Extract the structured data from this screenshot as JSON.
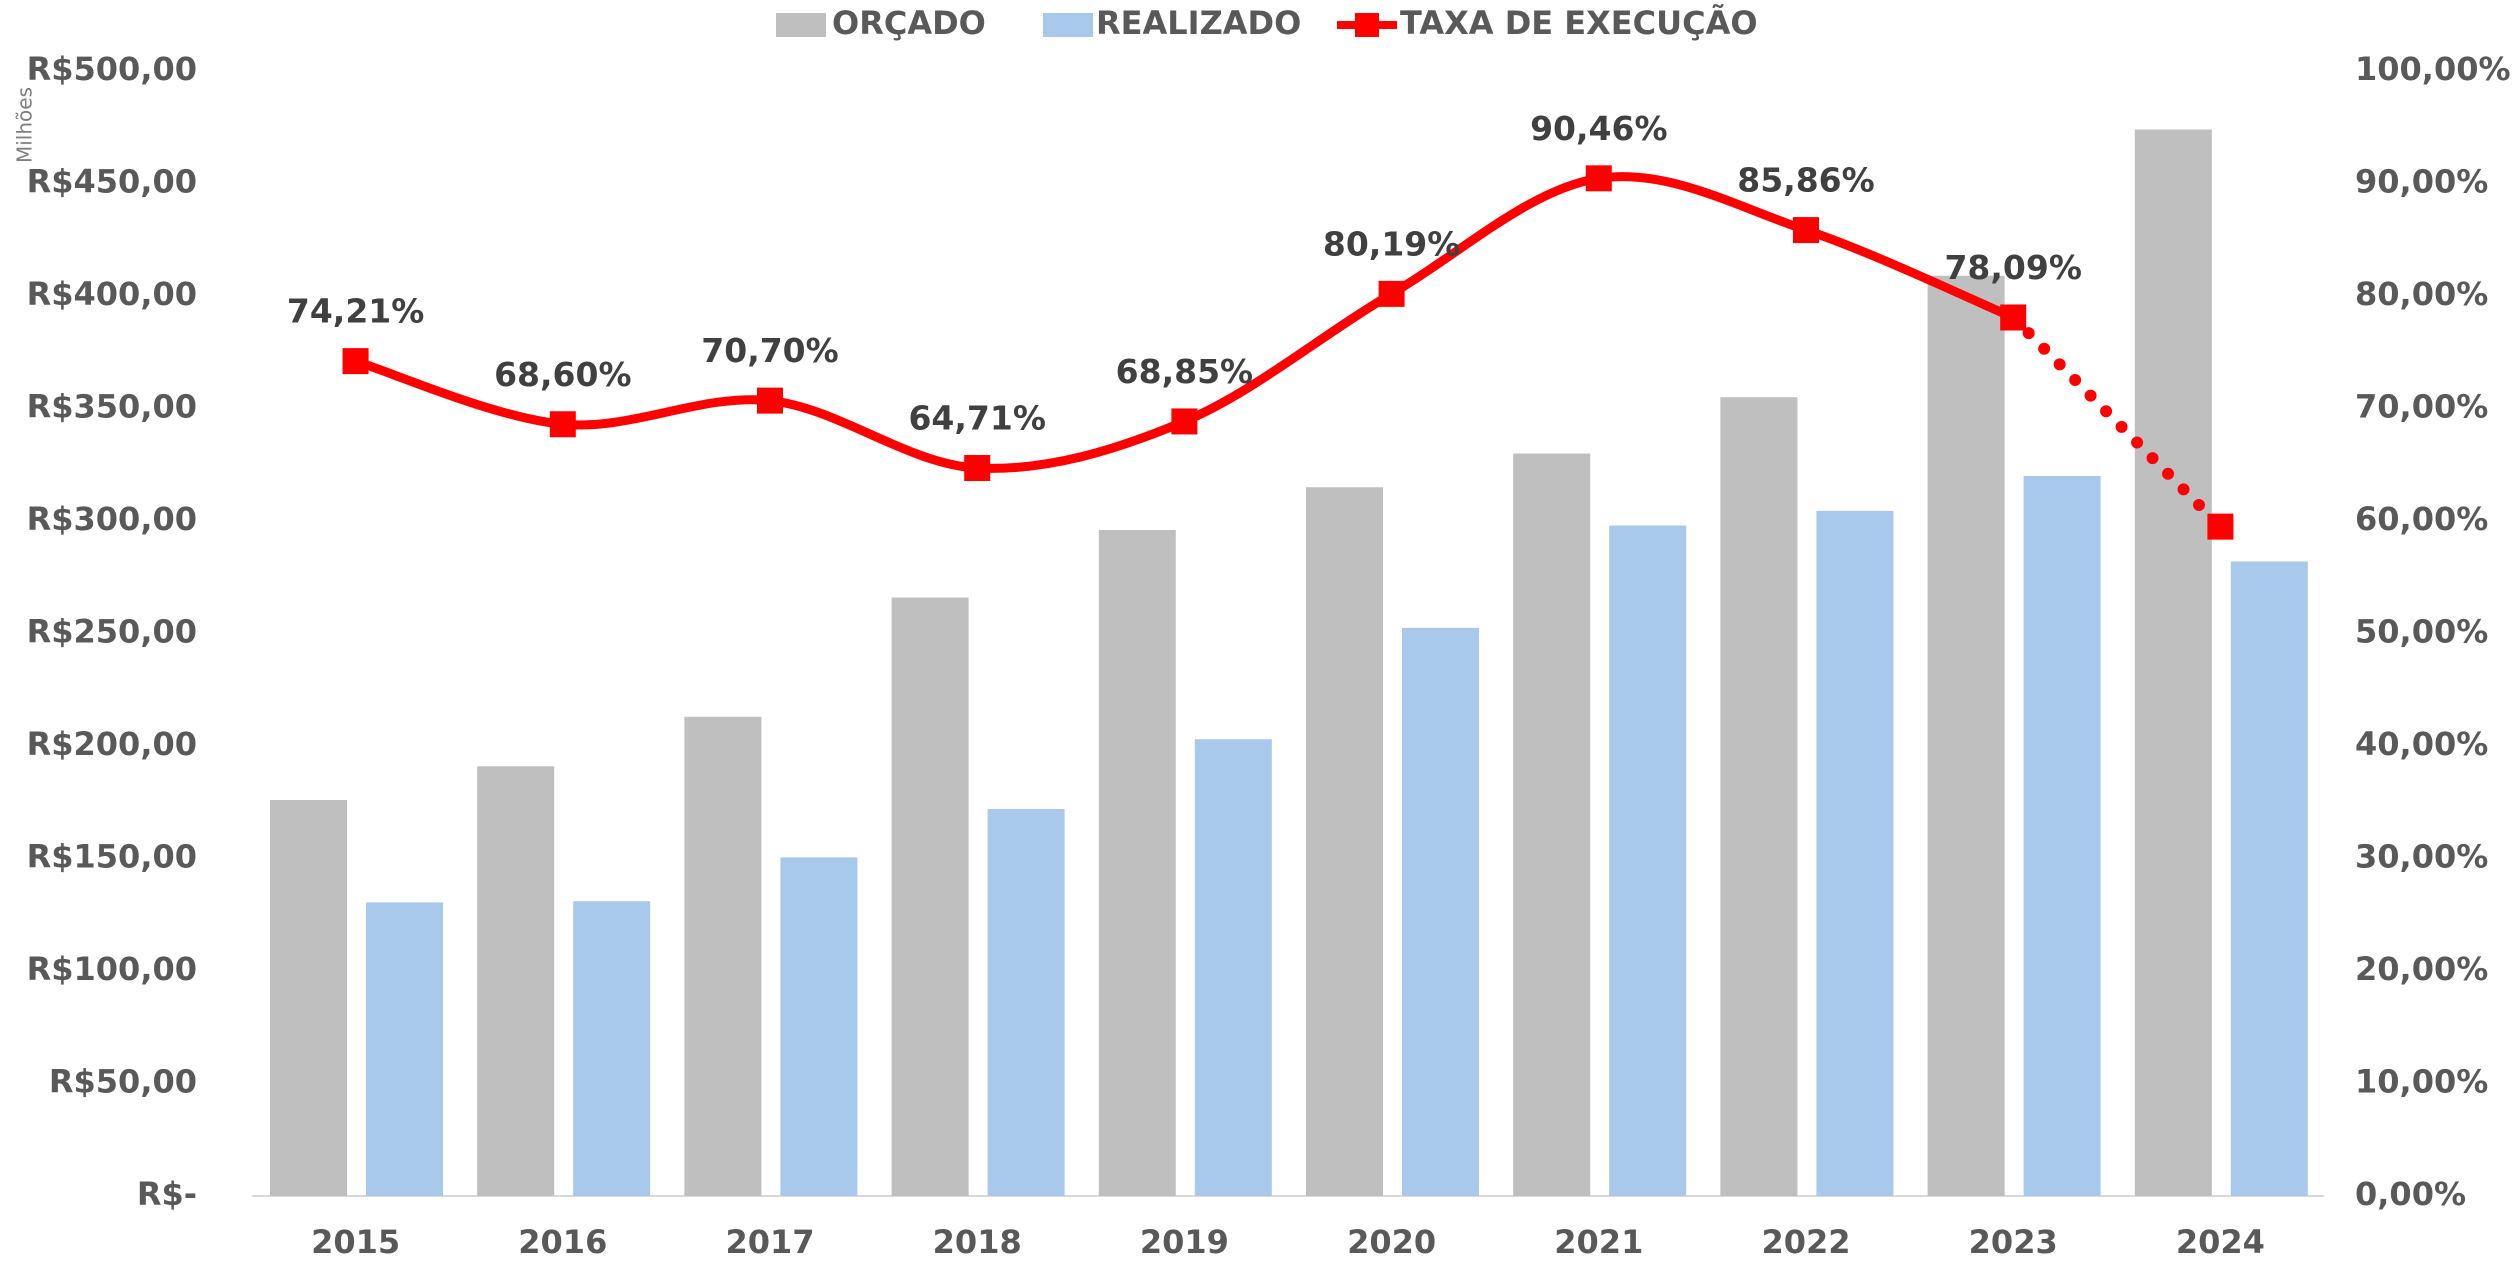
{
  "chart_data": {
    "type": "bar",
    "y_axis_label": "Milhões",
    "categories": [
      "2015",
      "2016",
      "2017",
      "2018",
      "2019",
      "2020",
      "2021",
      "2022",
      "2023",
      "2024"
    ],
    "series": [
      {
        "name": "ORÇADO",
        "color": "#bfbfbf",
        "values": [
          176,
          191,
          213,
          266,
          296,
          315,
          330,
          355,
          409,
          474
        ]
      },
      {
        "name": "REALIZADO",
        "color": "#a9c9ec",
        "values": [
          130.5,
          131,
          150.5,
          172,
          203,
          252.5,
          298,
          304.5,
          320,
          282
        ]
      },
      {
        "name": "TAXA DE EXECUÇÃO",
        "type": "line",
        "axis": "y2",
        "color": "#ff0000",
        "values": [
          74.21,
          68.6,
          70.7,
          64.71,
          68.85,
          80.19,
          90.46,
          85.86,
          78.09,
          59.5
        ],
        "value_labels": [
          "74,21%",
          "68,60%",
          "70,70%",
          "64,71%",
          "68,85%",
          "80,19%",
          "90,46%",
          "85,86%",
          "78,09%",
          null
        ]
      }
    ],
    "ylim": [
      0,
      500
    ],
    "yticks": [
      {
        "value": 0,
        "label": "R$-"
      },
      {
        "value": 50,
        "label": "R$50,00"
      },
      {
        "value": 100,
        "label": "R$100,00"
      },
      {
        "value": 150,
        "label": "R$150,00"
      },
      {
        "value": 200,
        "label": "R$200,00"
      },
      {
        "value": 250,
        "label": "R$250,00"
      },
      {
        "value": 300,
        "label": "R$300,00"
      },
      {
        "value": 350,
        "label": "R$350,00"
      },
      {
        "value": 400,
        "label": "R$400,00"
      },
      {
        "value": 450,
        "label": "R$450,00"
      },
      {
        "value": 500,
        "label": "R$500,00"
      }
    ],
    "y2lim": [
      0,
      100
    ],
    "y2ticks": [
      {
        "value": 0,
        "label": "0,00%"
      },
      {
        "value": 10,
        "label": "10,00%"
      },
      {
        "value": 20,
        "label": "20,00%"
      },
      {
        "value": 30,
        "label": "30,00%"
      },
      {
        "value": 40,
        "label": "40,00%"
      },
      {
        "value": 50,
        "label": "50,00%"
      },
      {
        "value": 60,
        "label": "60,00%"
      },
      {
        "value": 70,
        "label": "70,00%"
      },
      {
        "value": 80,
        "label": "80,00%"
      },
      {
        "value": 90,
        "label": "90,00%"
      },
      {
        "value": 100,
        "label": "100,00%"
      }
    ],
    "legend": "top"
  }
}
